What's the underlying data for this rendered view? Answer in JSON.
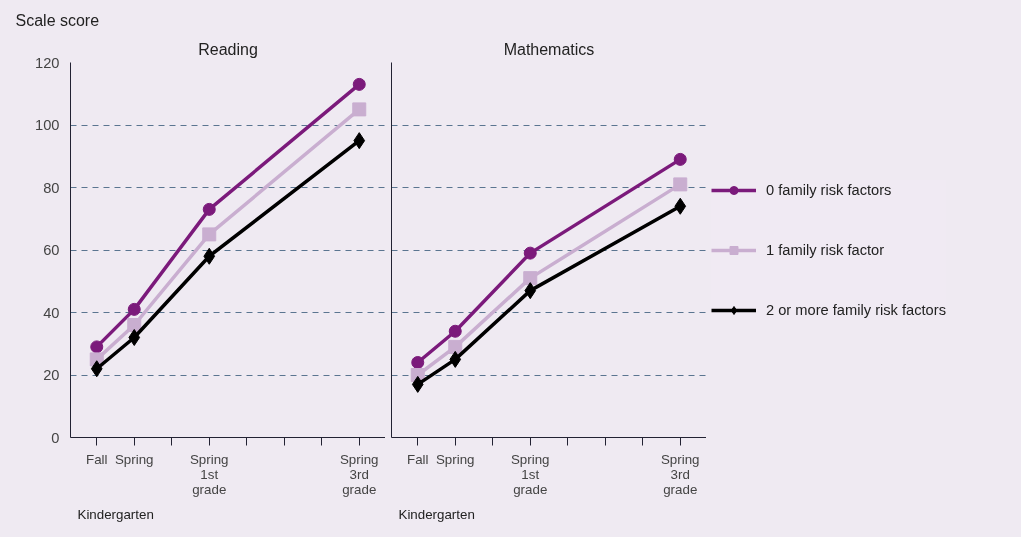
{
  "chart_data": [
    {
      "type": "line",
      "title": "Reading",
      "ylabel": "Scale score",
      "annotations": [
        "Kindergarten"
      ],
      "categories": [
        "Fall",
        "Spring",
        null,
        "Spring 1st grade",
        null,
        null,
        null,
        "Spring 3rd grade"
      ],
      "ylim": [
        0,
        120
      ],
      "yticks": [
        0,
        20,
        40,
        60,
        80,
        100,
        120
      ],
      "grid": "y",
      "legend": false,
      "series": [
        {
          "color": "#7b1a7b",
          "marker": "circle",
          "values": [
            29,
            41,
            null,
            73,
            null,
            null,
            null,
            113
          ]
        },
        {
          "color": "#c9aed0",
          "marker": "square",
          "values": [
            25,
            36,
            null,
            65,
            null,
            null,
            null,
            105
          ]
        },
        {
          "color": "#000000",
          "marker": "diamond",
          "values": [
            22,
            32,
            null,
            58,
            null,
            null,
            null,
            95
          ]
        }
      ]
    },
    {
      "type": "line",
      "title": "Mathematics",
      "annotations": [
        "Kindergarten"
      ],
      "categories": [
        "Fall",
        "Spring",
        null,
        "Spring 1st grade",
        null,
        null,
        null,
        "Spring 3rd grade"
      ],
      "ylim": [
        0,
        120
      ],
      "yticks": [
        0,
        20,
        40,
        60,
        80,
        100,
        120
      ],
      "grid": "y",
      "legend": "right",
      "tick_labels": "x",
      "series": [
        {
          "name": "0 family risk factors",
          "color": "#7b1a7b",
          "marker": "circle",
          "values": [
            24,
            34,
            null,
            59,
            null,
            null,
            null,
            89
          ]
        },
        {
          "name": "1 family risk factor",
          "color": "#c9aed0",
          "marker": "square",
          "values": [
            20,
            29,
            null,
            51,
            null,
            null,
            null,
            81
          ]
        },
        {
          "name": "2 or more family risk factors",
          "color": "#000000",
          "marker": "diamond",
          "values": [
            17,
            25,
            null,
            47,
            null,
            null,
            null,
            74
          ]
        }
      ]
    }
  ]
}
